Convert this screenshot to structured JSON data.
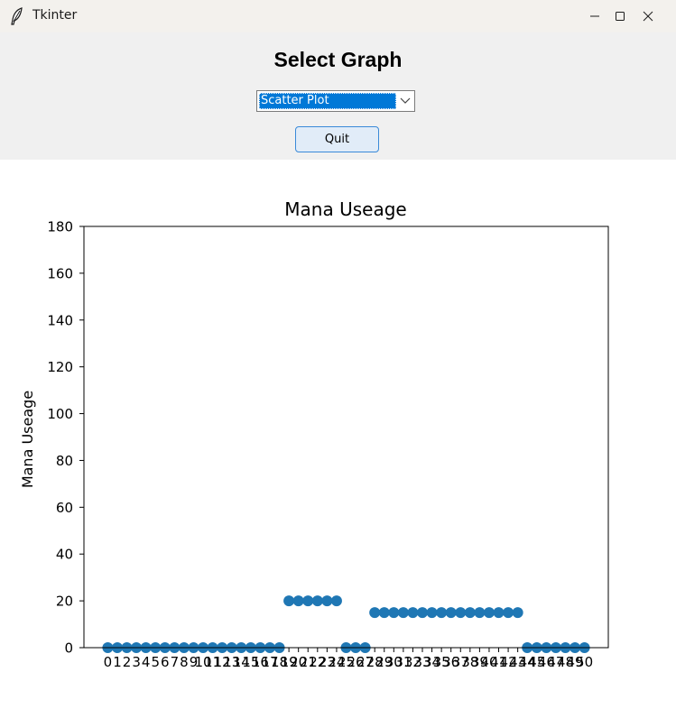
{
  "window": {
    "title": "Tkinter",
    "icon": "feather-icon",
    "controls": [
      "minimize-icon",
      "maximize-icon",
      "close-icon"
    ]
  },
  "header": {
    "title": "Select Graph",
    "dropdown_value": "Scatter Plot",
    "quit_label": "Quit"
  },
  "colors": {
    "marker": "#1f77b4",
    "selection": "#0078d7",
    "button_fill": "#e1ecf8",
    "button_border": "#3a8ad8"
  },
  "chart_data": {
    "type": "scatter",
    "title": "Mana Useage",
    "xlabel": "",
    "ylabel": "Mana Useage",
    "ylim": [
      0,
      180
    ],
    "xlim": [
      -2.5,
      52.5
    ],
    "yticks": [
      0,
      20,
      40,
      60,
      80,
      100,
      120,
      140,
      160,
      180
    ],
    "xticks": [
      0,
      1,
      2,
      3,
      4,
      5,
      6,
      7,
      8,
      9,
      10,
      11,
      12,
      13,
      14,
      15,
      16,
      17,
      18,
      19,
      20,
      21,
      22,
      23,
      24,
      25,
      26,
      27,
      28,
      29,
      30,
      31,
      32,
      33,
      34,
      35,
      36,
      37,
      38,
      39,
      40,
      41,
      42,
      43,
      44,
      45,
      46,
      47,
      48,
      49,
      50
    ],
    "grid": false,
    "legend": "none",
    "x": [
      0,
      1,
      2,
      3,
      4,
      5,
      6,
      7,
      8,
      9,
      10,
      11,
      12,
      13,
      14,
      15,
      16,
      17,
      18,
      19,
      20,
      21,
      22,
      23,
      24,
      25,
      26,
      27,
      28,
      29,
      30,
      31,
      32,
      33,
      34,
      35,
      36,
      37,
      38,
      39,
      40,
      41,
      42,
      43,
      44,
      45,
      46,
      47,
      48,
      49,
      50
    ],
    "y": [
      0,
      0,
      0,
      0,
      0,
      0,
      0,
      0,
      0,
      0,
      0,
      0,
      0,
      0,
      0,
      0,
      0,
      0,
      0,
      20,
      20,
      20,
      20,
      20,
      20,
      0,
      0,
      0,
      15,
      15,
      15,
      15,
      15,
      15,
      15,
      15,
      15,
      15,
      15,
      15,
      15,
      15,
      15,
      15,
      0,
      0,
      0,
      0,
      0,
      0,
      0
    ]
  }
}
